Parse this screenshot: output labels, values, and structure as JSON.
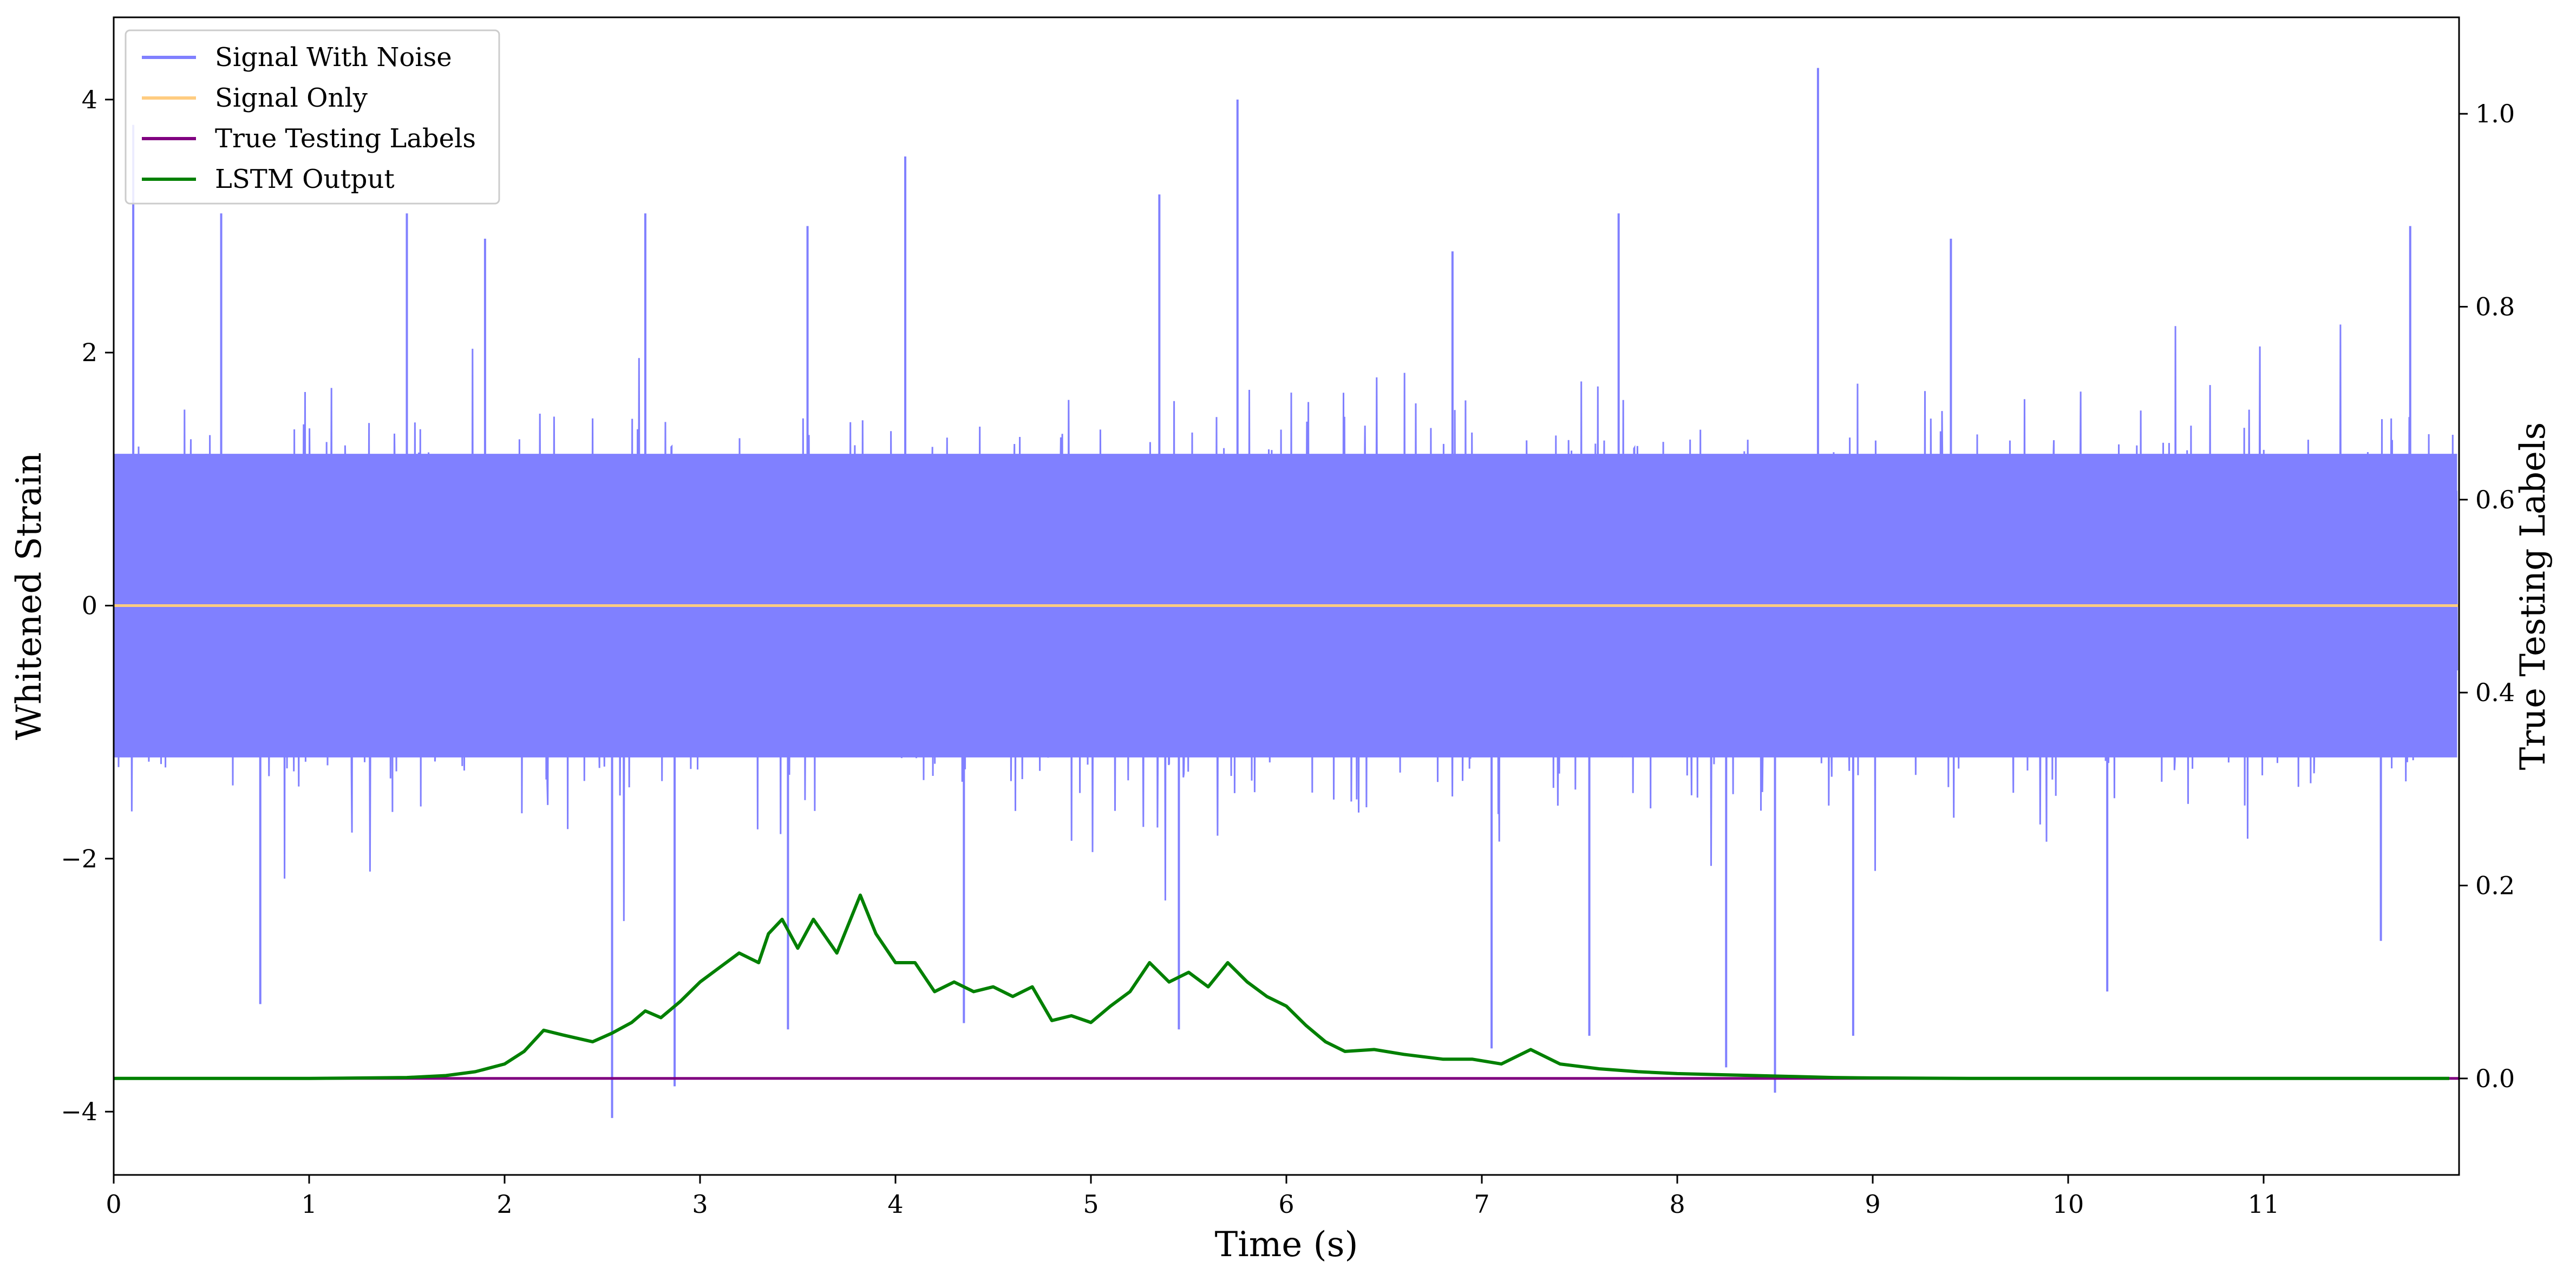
{
  "chart_data": {
    "type": "line",
    "title": "",
    "xlabel": "Time (s)",
    "ylabel_left": "Whitened Strain",
    "ylabel_right": "True Testing Labels",
    "xlim": [
      0,
      12
    ],
    "ylim_left": [
      -4.5,
      4.65
    ],
    "ylim_right": [
      -0.1,
      1.1
    ],
    "xticks": [
      0,
      1,
      2,
      3,
      4,
      5,
      6,
      7,
      8,
      9,
      10,
      11
    ],
    "xtick_labels": [
      "0",
      "1",
      "2",
      "3",
      "4",
      "5",
      "6",
      "7",
      "8",
      "9",
      "10",
      "11"
    ],
    "yticks_left": [
      -4,
      -2,
      0,
      2,
      4
    ],
    "ytick_labels_left": [
      "−4",
      "−2",
      "0",
      "2",
      "4"
    ],
    "yticks_right": [
      0.0,
      0.2,
      0.4,
      0.6,
      0.8,
      1.0
    ],
    "ytick_labels_right": [
      "0.0",
      "0.2",
      "0.4",
      "0.6",
      "0.8",
      "1.0"
    ],
    "grid": false,
    "legend_position": "top-left",
    "series": [
      {
        "name": "Signal With Noise",
        "axis": "left",
        "color": "#8080ff",
        "noise": {
          "core_amplitude": 1.6,
          "spikes": [
            [
              0.1,
              3.8
            ],
            [
              0.55,
              3.1
            ],
            [
              1.5,
              3.1
            ],
            [
              1.9,
              2.9
            ],
            [
              2.72,
              3.1
            ],
            [
              3.55,
              3.0
            ],
            [
              4.05,
              3.55
            ],
            [
              5.35,
              3.25
            ],
            [
              5.75,
              4.0
            ],
            [
              6.85,
              2.8
            ],
            [
              7.7,
              3.1
            ],
            [
              8.72,
              4.25
            ],
            [
              9.4,
              2.9
            ],
            [
              11.75,
              3.0
            ],
            [
              0.75,
              -3.15
            ],
            [
              2.55,
              -4.05
            ],
            [
              2.87,
              -3.8
            ],
            [
              3.45,
              -3.35
            ],
            [
              4.35,
              -3.3
            ],
            [
              5.45,
              -3.35
            ],
            [
              7.05,
              -3.5
            ],
            [
              7.55,
              -3.4
            ],
            [
              8.25,
              -3.65
            ],
            [
              8.5,
              -3.85
            ],
            [
              8.9,
              -3.4
            ],
            [
              10.2,
              -3.05
            ],
            [
              11.6,
              -2.65
            ]
          ]
        }
      },
      {
        "name": "Signal Only",
        "axis": "left",
        "color": "#ffcc80",
        "x": [
          0,
          12
        ],
        "y": [
          0,
          0
        ]
      },
      {
        "name": "True Testing Labels",
        "axis": "right",
        "color": "#800080",
        "x": [
          0,
          12
        ],
        "y": [
          0,
          0
        ]
      },
      {
        "name": "LSTM Output",
        "axis": "right",
        "color": "#008000",
        "x": [
          0,
          0.5,
          1.0,
          1.5,
          1.7,
          1.85,
          2.0,
          2.1,
          2.2,
          2.3,
          2.45,
          2.55,
          2.65,
          2.72,
          2.8,
          2.9,
          3.0,
          3.1,
          3.2,
          3.3,
          3.35,
          3.42,
          3.5,
          3.58,
          3.7,
          3.82,
          3.9,
          4.0,
          4.1,
          4.2,
          4.3,
          4.4,
          4.5,
          4.6,
          4.7,
          4.8,
          4.9,
          5.0,
          5.1,
          5.2,
          5.3,
          5.4,
          5.5,
          5.6,
          5.7,
          5.8,
          5.9,
          6.0,
          6.1,
          6.2,
          6.3,
          6.45,
          6.6,
          6.8,
          6.95,
          7.1,
          7.25,
          7.4,
          7.6,
          7.8,
          8.0,
          8.2,
          8.4,
          8.6,
          8.8,
          9.0,
          9.5,
          10.0,
          11.0,
          11.95
        ],
        "y": [
          0.0,
          0.0,
          0.0,
          0.001,
          0.003,
          0.007,
          0.015,
          0.028,
          0.05,
          0.045,
          0.038,
          0.047,
          0.058,
          0.07,
          0.063,
          0.08,
          0.1,
          0.115,
          0.13,
          0.12,
          0.15,
          0.165,
          0.135,
          0.165,
          0.13,
          0.19,
          0.15,
          0.12,
          0.12,
          0.09,
          0.1,
          0.09,
          0.095,
          0.085,
          0.095,
          0.06,
          0.065,
          0.058,
          0.075,
          0.09,
          0.12,
          0.1,
          0.11,
          0.095,
          0.12,
          0.1,
          0.085,
          0.075,
          0.055,
          0.038,
          0.028,
          0.03,
          0.025,
          0.02,
          0.02,
          0.015,
          0.03,
          0.015,
          0.01,
          0.007,
          0.005,
          0.004,
          0.003,
          0.002,
          0.001,
          0.0005,
          0.0,
          0.0,
          0.0,
          0.0
        ]
      }
    ]
  }
}
